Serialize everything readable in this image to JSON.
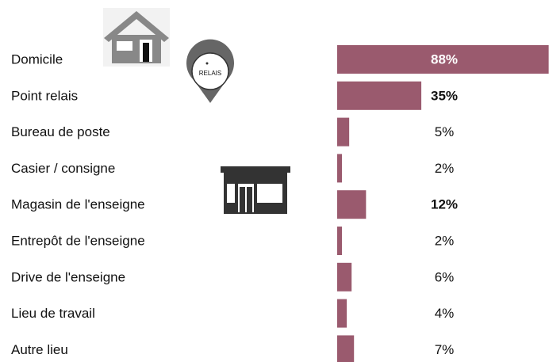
{
  "chart_data": {
    "type": "bar",
    "orientation": "horizontal",
    "categories": [
      "Domicile",
      "Point relais",
      "Bureau de poste",
      "Casier / consigne",
      "Magasin de l'enseigne",
      "Entrepôt de l'enseigne",
      "Drive de l'enseigne",
      "Lieu de travail",
      "Autre lieu"
    ],
    "values": [
      88,
      35,
      5,
      2,
      12,
      2,
      6,
      4,
      7
    ],
    "value_labels": [
      "88%",
      "35%",
      "5%",
      "2%",
      "12%",
      "2%",
      "6%",
      "4%",
      "7%"
    ],
    "bold_labels": [
      true,
      true,
      false,
      false,
      true,
      false,
      false,
      false,
      false
    ],
    "color": "#9a5a6e",
    "pin_label": "RELAIS"
  }
}
